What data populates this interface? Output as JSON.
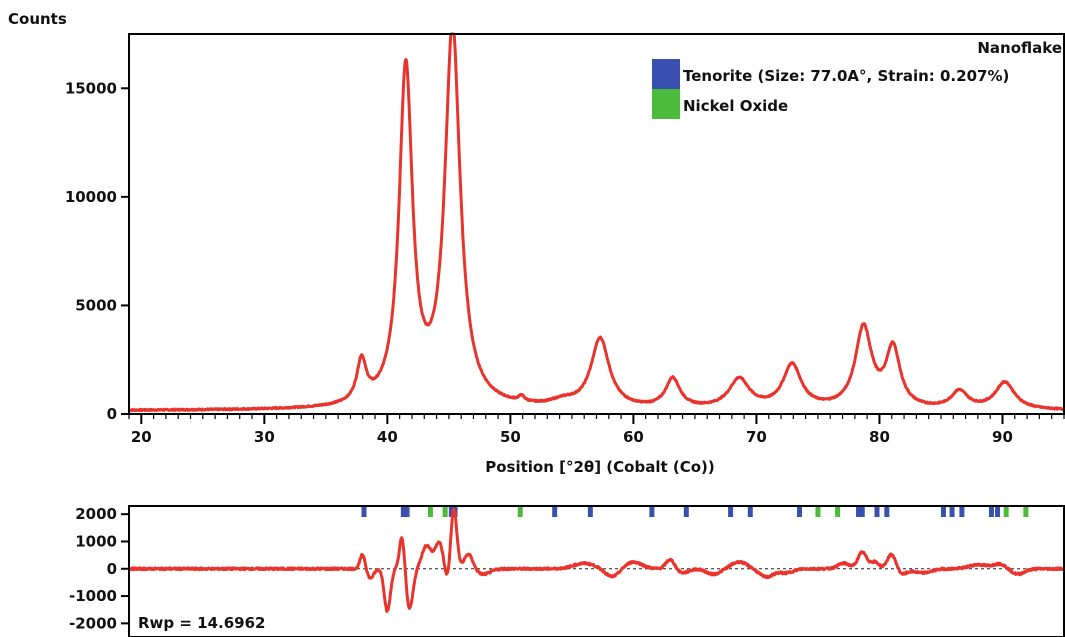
{
  "chart_data": [
    {
      "type": "line",
      "ylabel": "Counts",
      "xlabel": "Position [°2θ] (Cobalt (Co))",
      "xlim": [
        19,
        95
      ],
      "ylim": [
        0,
        17500
      ],
      "x_ticks": [
        20,
        30,
        40,
        50,
        60,
        70,
        80,
        90
      ],
      "y_ticks": [
        0,
        5000,
        10000,
        15000
      ],
      "legend": {
        "title": "Nanoflake",
        "position": "top-right",
        "entries": [
          {
            "label": "Tenorite (Size: 77.0A°, Strain: 0.207%)",
            "color": "#3a50b0"
          },
          {
            "label": "Nickel Oxide",
            "color": "#4cbb3c"
          }
        ]
      },
      "series": [
        {
          "color": "#e8342c",
          "baseline": 150,
          "peaks": [
            {
              "x": 37.9,
              "height": 1900,
              "width": 0.45
            },
            {
              "x": 41.5,
              "height": 15500,
              "width": 0.65
            },
            {
              "x": 45.3,
              "height": 17400,
              "width": 0.75
            },
            {
              "x": 50.9,
              "height": 250,
              "width": 0.3
            },
            {
              "x": 54.3,
              "height": 250,
              "width": 1.2
            },
            {
              "x": 57.3,
              "height": 3200,
              "width": 0.9
            },
            {
              "x": 63.2,
              "height": 1350,
              "width": 0.7
            },
            {
              "x": 68.6,
              "height": 1350,
              "width": 1.0
            },
            {
              "x": 72.9,
              "height": 2000,
              "width": 0.9
            },
            {
              "x": 78.7,
              "height": 3700,
              "width": 0.8
            },
            {
              "x": 81.1,
              "height": 2700,
              "width": 0.7
            },
            {
              "x": 86.5,
              "height": 800,
              "width": 0.8
            },
            {
              "x": 90.2,
              "height": 1250,
              "width": 0.95
            }
          ]
        }
      ]
    },
    {
      "type": "line",
      "annotation": "Rwp = 14.6962",
      "xlim": [
        19,
        95
      ],
      "ylim": [
        -2500,
        2300
      ],
      "y_ticks": [
        2000,
        1000,
        0,
        -1000,
        -2000
      ],
      "zero_line": "dashed",
      "reflection_markers": {
        "tenorite": {
          "color": "#3a50b0",
          "positions": [
            38.1,
            41.3,
            41.6,
            45.2,
            45.5,
            53.6,
            56.5,
            61.5,
            64.3,
            67.9,
            69.5,
            73.5,
            78.3,
            78.6,
            79.8,
            80.6,
            85.2,
            85.9,
            86.7,
            89.1,
            89.6
          ]
        },
        "nickel_oxide": {
          "color": "#4cbb3c",
          "positions": [
            43.5,
            44.7,
            50.8,
            75.0,
            76.6,
            90.3,
            91.9
          ]
        }
      },
      "series": [
        {
          "color": "#e8342c",
          "features": [
            {
              "x": 38.0,
              "amp": 550,
              "width": 0.3
            },
            {
              "x": 38.6,
              "amp": -350,
              "width": 0.4
            },
            {
              "x": 40.0,
              "amp": -1550,
              "width": 0.35
            },
            {
              "x": 41.2,
              "amp": 1250,
              "width": 0.3
            },
            {
              "x": 41.8,
              "amp": -1450,
              "width": 0.4
            },
            {
              "x": 43.2,
              "amp": 850,
              "width": 0.55
            },
            {
              "x": 44.2,
              "amp": 950,
              "width": 0.45
            },
            {
              "x": 44.9,
              "amp": -500,
              "width": 0.3
            },
            {
              "x": 45.4,
              "amp": 2200,
              "width": 0.35
            },
            {
              "x": 46.6,
              "amp": 550,
              "width": 0.5
            },
            {
              "x": 47.8,
              "amp": -200,
              "width": 0.8
            },
            {
              "x": 56.0,
              "amp": 200,
              "width": 1.2
            },
            {
              "x": 58.3,
              "amp": -300,
              "width": 0.8
            },
            {
              "x": 60.0,
              "amp": 250,
              "width": 1.0
            },
            {
              "x": 63.0,
              "amp": 350,
              "width": 0.5
            },
            {
              "x": 64.0,
              "amp": -150,
              "width": 0.7
            },
            {
              "x": 66.5,
              "amp": -200,
              "width": 0.8
            },
            {
              "x": 68.6,
              "amp": 250,
              "width": 0.9
            },
            {
              "x": 70.8,
              "amp": -300,
              "width": 0.8
            },
            {
              "x": 72.4,
              "amp": -150,
              "width": 0.8
            },
            {
              "x": 77.1,
              "amp": 200,
              "width": 0.7
            },
            {
              "x": 78.6,
              "amp": 600,
              "width": 0.5
            },
            {
              "x": 79.6,
              "amp": 250,
              "width": 0.5
            },
            {
              "x": 81.0,
              "amp": 550,
              "width": 0.5
            },
            {
              "x": 81.8,
              "amp": -200,
              "width": 0.6
            },
            {
              "x": 83.5,
              "amp": -150,
              "width": 1.0
            },
            {
              "x": 88.0,
              "amp": 150,
              "width": 1.0
            },
            {
              "x": 89.8,
              "amp": 180,
              "width": 0.8
            },
            {
              "x": 91.2,
              "amp": -200,
              "width": 0.8
            }
          ]
        }
      ]
    }
  ]
}
